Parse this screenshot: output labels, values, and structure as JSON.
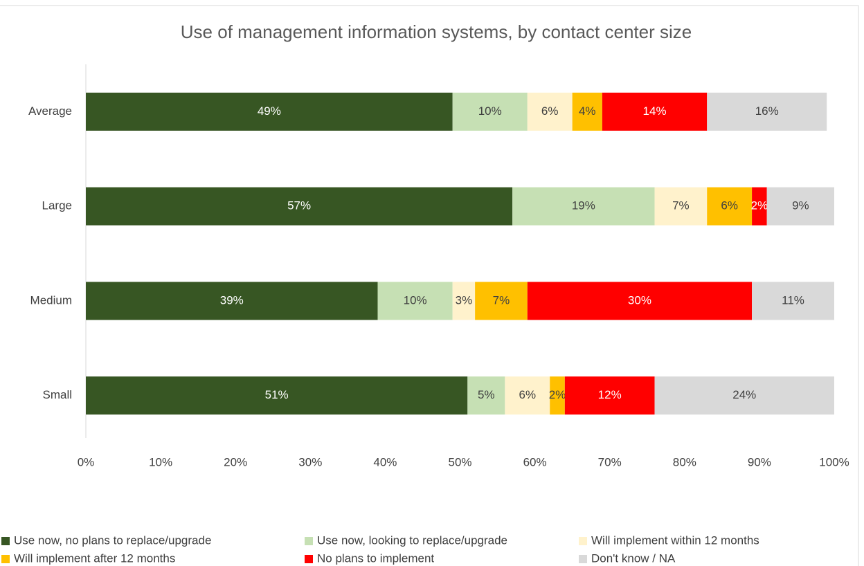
{
  "chart_data": {
    "type": "stacked-barh",
    "title": "Use of management information systems, by contact center size",
    "categories": [
      "Average",
      "Large",
      "Medium",
      "Small"
    ],
    "series": [
      {
        "name": "Use now, no plans to replace/upgrade",
        "color": "#375623",
        "values": [
          49,
          57,
          39,
          51
        ]
      },
      {
        "name": "Use now, looking to replace/upgrade",
        "color": "#c6e0b4",
        "values": [
          10,
          19,
          10,
          5
        ]
      },
      {
        "name": "Will implement within 12 months",
        "color": "#fff2cc",
        "values": [
          6,
          7,
          3,
          6
        ]
      },
      {
        "name": "Will implement after 12 months",
        "color": "#ffc000",
        "values": [
          4,
          6,
          7,
          2
        ]
      },
      {
        "name": "No plans to implement",
        "color": "#ff0000",
        "values": [
          14,
          2,
          30,
          12
        ]
      },
      {
        "name": "Don't know / NA",
        "color": "#d9d9d9",
        "values": [
          16,
          9,
          11,
          24
        ]
      }
    ],
    "value_labels": [
      [
        "49%",
        "57%",
        "39%",
        "51%"
      ],
      [
        "10%",
        "19%",
        "10%",
        "5%"
      ],
      [
        "6%",
        "7%",
        "3%",
        "6%"
      ],
      [
        "4%",
        "6%",
        "7%",
        "2%"
      ],
      [
        "14%",
        "2%",
        "30%",
        "12%"
      ],
      [
        "16%",
        "9%",
        "11%",
        "24%"
      ]
    ],
    "xlim": [
      0,
      100
    ],
    "xticks": [
      {
        "value": 0,
        "label": "0%"
      },
      {
        "value": 10,
        "label": "10%"
      },
      {
        "value": 20,
        "label": "20%"
      },
      {
        "value": 30,
        "label": "30%"
      },
      {
        "value": 40,
        "label": "40%"
      },
      {
        "value": 50,
        "label": "50%"
      },
      {
        "value": 60,
        "label": "60%"
      },
      {
        "value": 70,
        "label": "70%"
      },
      {
        "value": 80,
        "label": "80%"
      },
      {
        "value": 90,
        "label": "90%"
      },
      {
        "value": 100,
        "label": "100%"
      }
    ],
    "legend": "bottom"
  }
}
